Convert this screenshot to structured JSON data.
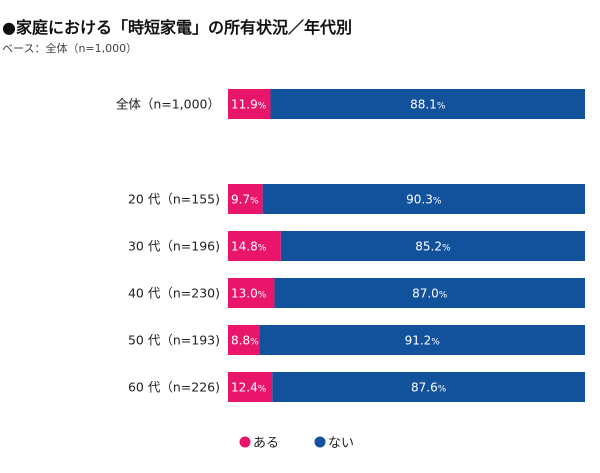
{
  "chart_data": {
    "type": "bar",
    "orientation": "horizontal",
    "stacked": true,
    "title": "●家庭における「時短家電」の所有状況／年代別",
    "subtitle": "ベース：全体（n=1,000）",
    "categories": [
      "全体（n=1,000）",
      "20 代（n=155)",
      "30 代（n=196)",
      "40 代（n=230)",
      "50 代（n=193)",
      "60 代（n=226)"
    ],
    "series": [
      {
        "name": "ある",
        "color": "#e8156b",
        "values": [
          11.9,
          9.7,
          14.8,
          13.0,
          8.8,
          12.4
        ]
      },
      {
        "name": "ない",
        "color": "#12519b",
        "values": [
          88.1,
          90.3,
          85.2,
          87.0,
          91.2,
          87.6
        ]
      }
    ],
    "value_suffix": "%",
    "xlim": [
      0,
      100
    ],
    "legend": "bottom"
  }
}
